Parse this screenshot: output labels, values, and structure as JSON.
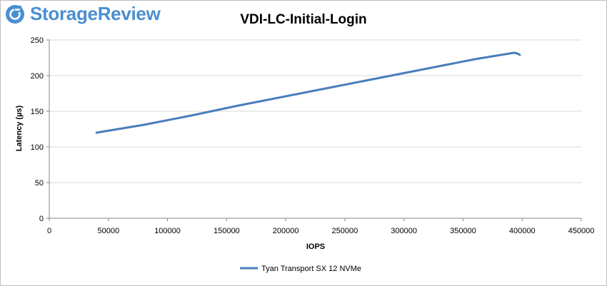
{
  "brand": {
    "name": "StorageReview",
    "icon": "storagereview-logo-icon",
    "color": "#4a8fd1"
  },
  "chart_data": {
    "type": "line",
    "title": "VDI-LC-Initial-Login",
    "xlabel": "IOPS",
    "ylabel": "Latency (µs)",
    "xlim": [
      0,
      450000
    ],
    "ylim": [
      0,
      250
    ],
    "xticks": [
      0,
      50000,
      100000,
      150000,
      200000,
      250000,
      300000,
      350000,
      400000,
      450000
    ],
    "yticks": [
      0,
      50,
      100,
      150,
      200,
      250
    ],
    "grid": "horizontal",
    "legend_position": "bottom",
    "series": [
      {
        "name": "Tyan Transport SX 12 NVMe",
        "color": "#4a7ebb",
        "x": [
          40000,
          80000,
          120000,
          160000,
          200000,
          240000,
          280000,
          320000,
          360000,
          393000,
          396000,
          398000
        ],
        "y": [
          120,
          131,
          144,
          158,
          171,
          184,
          197,
          210,
          223,
          232,
          231,
          229
        ]
      }
    ]
  }
}
